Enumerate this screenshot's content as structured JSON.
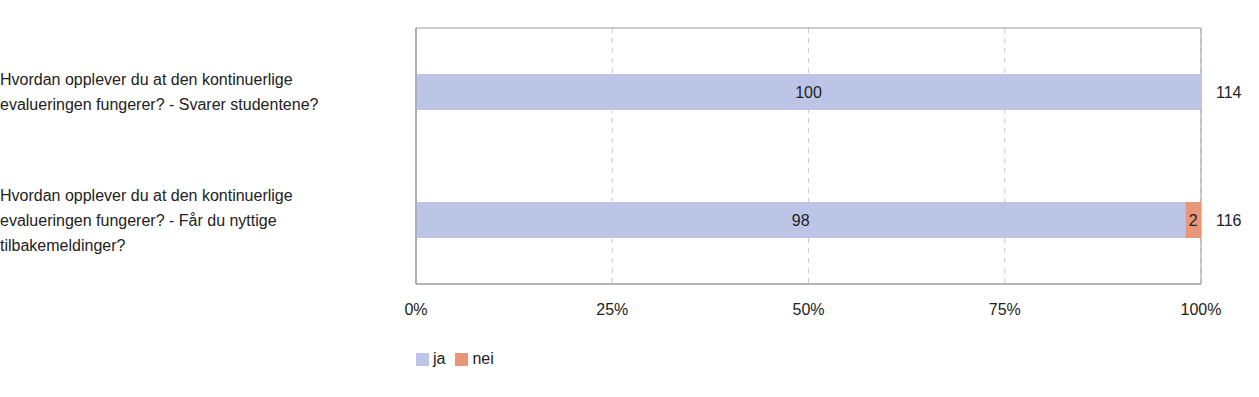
{
  "chart_data": {
    "type": "bar",
    "orientation": "horizontal",
    "stacked": true,
    "data_labels": true,
    "grid": true,
    "legend": "bottom left",
    "categories": [
      "Hvordan opplever du at den kontinuerlige evalueringen fungerer? - Svarer studentene?",
      "Hvordan opplever du at den kontinuerlige evalueringen fungerer? - Får du nyttige tilbakemeldinger?"
    ],
    "series": [
      {
        "name": "ja",
        "color": "#bcc5e6",
        "values": [
          100,
          98
        ]
      },
      {
        "name": "nei",
        "color": "#e8967a",
        "values": [
          null,
          2
        ]
      }
    ],
    "totals": [
      114,
      116
    ],
    "xlim": [
      0,
      100
    ],
    "xticks": [
      {
        "value": 0,
        "label": "0%"
      },
      {
        "value": 25,
        "label": "25%"
      },
      {
        "value": 50,
        "label": "50%"
      },
      {
        "value": 75,
        "label": "75%"
      },
      {
        "value": 100,
        "label": "100%"
      }
    ]
  }
}
